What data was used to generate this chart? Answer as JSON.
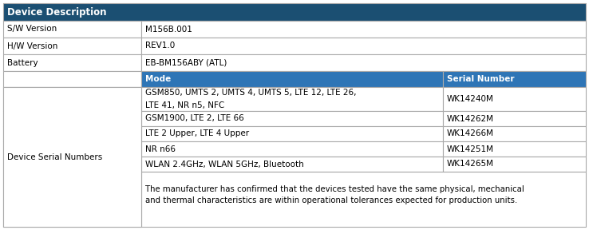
{
  "header_bg": "#1B4F72",
  "header_text_color": "#FFFFFF",
  "subheader_bg": "#2E75B6",
  "subheader_text_color": "#FFFFFF",
  "border_color": "#AAAAAA",
  "title": "Device Description",
  "simple_rows": [
    {
      "label": "S/W Version",
      "value": "M156B.001"
    },
    {
      "label": "H/W Version",
      "value": "REV1.0"
    },
    {
      "label": "Battery",
      "value": "EB-BM156ABY (ATL)"
    }
  ],
  "complex_label": "Device Serial Numbers",
  "mode_header": "Mode",
  "serial_header": "Serial Number",
  "serial_rows": [
    {
      "mode_line1": "GSM850, UMTS 2, UMTS 4, UMTS 5, LTE 12, LTE 26,",
      "mode_line2": "LTE 41, NR n5, NFC",
      "serial": "WK14240M",
      "tall": true
    },
    {
      "mode_line1": "GSM1900, LTE 2, LTE 66",
      "mode_line2": "",
      "serial": "WK14262M",
      "tall": false
    },
    {
      "mode_line1": "LTE 2 Upper, LTE 4 Upper",
      "mode_line2": "",
      "serial": "WK14266M",
      "tall": false
    },
    {
      "mode_line1": "NR n66",
      "mode_line2": "",
      "serial": "WK14251M",
      "tall": false
    },
    {
      "mode_line1": "WLAN 2.4GHz, WLAN 5GHz, Bluetooth",
      "mode_line2": "",
      "serial": "WK14265M",
      "tall": false
    }
  ],
  "note_line1": "The manufacturer has confirmed that the devices tested have the same physical, mechanical",
  "note_line2": "and thermal characteristics are within operational tolerances expected for production units.",
  "figw": 7.38,
  "figh": 2.88,
  "dpi": 100
}
